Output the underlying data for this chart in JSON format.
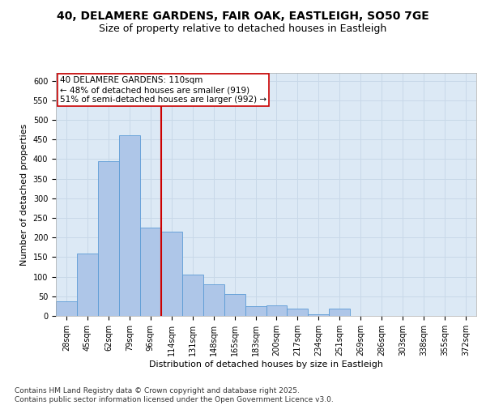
{
  "title_line1": "40, DELAMERE GARDENS, FAIR OAK, EASTLEIGH, SO50 7GE",
  "title_line2": "Size of property relative to detached houses in Eastleigh",
  "xlabel": "Distribution of detached houses by size in Eastleigh",
  "ylabel": "Number of detached properties",
  "categories": [
    "28sqm",
    "45sqm",
    "62sqm",
    "79sqm",
    "96sqm",
    "114sqm",
    "131sqm",
    "148sqm",
    "165sqm",
    "183sqm",
    "200sqm",
    "217sqm",
    "234sqm",
    "251sqm",
    "269sqm",
    "286sqm",
    "303sqm",
    "338sqm",
    "355sqm",
    "372sqm"
  ],
  "values": [
    38,
    160,
    395,
    460,
    225,
    215,
    105,
    80,
    55,
    25,
    27,
    18,
    5,
    18,
    0,
    0,
    0,
    0,
    0,
    0
  ],
  "bar_color": "#aec6e8",
  "bar_edge_color": "#5b9bd5",
  "vline_position": 4.5,
  "vline_color": "#cc0000",
  "annotation_text": "40 DELAMERE GARDENS: 110sqm\n← 48% of detached houses are smaller (919)\n51% of semi-detached houses are larger (992) →",
  "annotation_box_color": "#ffffff",
  "annotation_box_edge": "#cc0000",
  "grid_color": "#c8d8e8",
  "background_color": "#dce9f5",
  "ylim": [
    0,
    620
  ],
  "yticks": [
    0,
    50,
    100,
    150,
    200,
    250,
    300,
    350,
    400,
    450,
    500,
    550,
    600
  ],
  "footer": "Contains HM Land Registry data © Crown copyright and database right 2025.\nContains public sector information licensed under the Open Government Licence v3.0.",
  "title_fontsize": 10,
  "subtitle_fontsize": 9,
  "axis_label_fontsize": 8,
  "tick_fontsize": 7,
  "annotation_fontsize": 7.5,
  "footer_fontsize": 6.5
}
